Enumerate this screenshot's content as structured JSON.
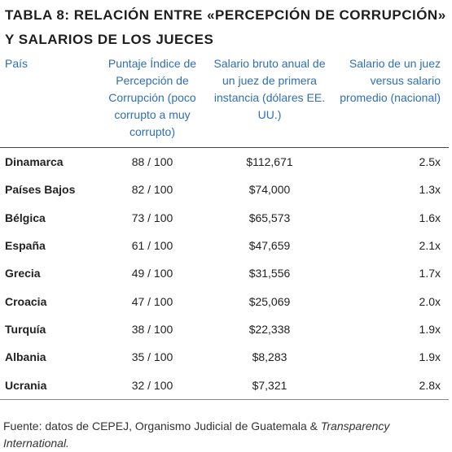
{
  "title": [
    "TABLA 8: RELACIÓN ENTRE «PERCEPCIÓN DE CORRUPCIÓN»",
    "Y SALARIOS DE LOS JUECES"
  ],
  "table": {
    "headers": [
      "País",
      "Puntaje Índice de Percepción de Corrupción (poco corrupto a muy corrupto)",
      "Salario bruto anual de un juez de primera instancia (dólares EE. UU.)",
      "Salario de un juez versus salario promedio (nacional)"
    ],
    "rows": [
      [
        "Dinamarca",
        "88 / 100",
        "$112,671",
        "2.5x"
      ],
      [
        "Países Bajos",
        "82 / 100",
        "$74,000",
        "1.3x"
      ],
      [
        "Bélgica",
        "73 / 100",
        "$65,573",
        "1.6x"
      ],
      [
        "España",
        "61 / 100",
        "$47,659",
        "2.1x"
      ],
      [
        "Grecia",
        "49 / 100",
        "$31,556",
        "1.7x"
      ],
      [
        "Croacia",
        "47 / 100",
        "$25,069",
        "2.0x"
      ],
      [
        "Turquía",
        "38 / 100",
        "$22,338",
        "1.9x"
      ],
      [
        "Albania",
        "35 / 100",
        "$8,283",
        "1.9x"
      ],
      [
        "Ucrania",
        "32 / 100",
        "$7,321",
        "2.8x"
      ]
    ]
  },
  "source": {
    "text": "Fuente: datos de CEPEJ, Organismo Judicial de Guatemala &",
    "italic": "Transparency International."
  }
}
